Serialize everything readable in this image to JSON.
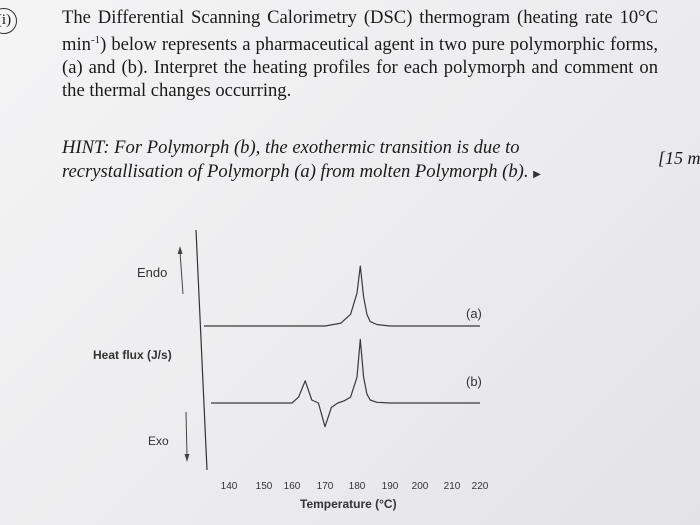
{
  "question": {
    "number": "(i)",
    "text_before_sup": "The Differential Scanning Calorimetry (DSC) thermogram (heating rate 10°C min",
    "superscript": "-1",
    "text_after_sup": ") below represents a pharmaceutical agent in two pure polymorphic forms, (a) and (b). Interpret the heating profiles for each polymorph and comment on the thermal changes occurring.",
    "hint": "HINT: For Polymorph (b), the exothermic transition is due to recrystallisation of Polymorph (a) from molten Polymorph (b).",
    "marks": "[15 m"
  },
  "chart_data": {
    "type": "line",
    "xlabel": "Temperature (°C)",
    "ylabel": "Heat flux (J/s)",
    "x_ticks": [
      140,
      150,
      160,
      170,
      180,
      190,
      200,
      210,
      220
    ],
    "xlim": [
      140,
      220
    ],
    "endo_label": "Endo",
    "exo_label": "Exo",
    "series": [
      {
        "name": "(a)",
        "x": [
          140,
          150,
          160,
          170,
          175,
          178,
          180,
          181,
          182,
          183,
          184,
          186,
          190,
          200,
          210,
          220
        ],
        "y": [
          0,
          0,
          0,
          0,
          0.4,
          1.6,
          4.5,
          8.2,
          4.0,
          1.6,
          0.6,
          0.2,
          0,
          0,
          0,
          0
        ]
      },
      {
        "name": "(b)",
        "x": [
          140,
          150,
          160,
          162,
          164,
          166,
          168,
          170,
          172,
          174,
          176,
          178,
          180,
          181,
          182,
          183,
          184,
          186,
          190,
          200,
          210,
          220
        ],
        "y": [
          0,
          0,
          0,
          0.8,
          3.0,
          0.4,
          0,
          -3.2,
          -0.6,
          0,
          0.3,
          0.8,
          3.5,
          8.6,
          3.5,
          1.2,
          0.4,
          0.1,
          0,
          0,
          0,
          0
        ]
      }
    ]
  }
}
